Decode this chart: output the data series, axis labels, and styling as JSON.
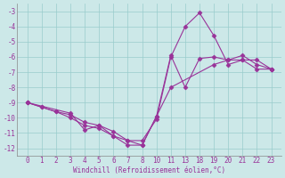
{
  "background_color": "#cce8e8",
  "line_color": "#993399",
  "marker": "D",
  "markersize": 2.5,
  "linewidth": 0.8,
  "xlabel": "Windchill (Refroidissement éolien,°C)",
  "xlabels": [
    "0",
    "1",
    "2",
    "3",
    "4",
    "5",
    "6",
    "7",
    "8",
    "10",
    "11",
    "13",
    "18",
    "19",
    "20",
    "21",
    "22",
    "23"
  ],
  "xvalues": [
    0,
    1,
    2,
    3,
    4,
    5,
    6,
    7,
    8,
    9,
    10,
    11,
    12,
    13,
    14,
    15,
    16,
    17
  ],
  "yticks": [
    -3,
    -4,
    -5,
    -6,
    -7,
    -8,
    -9,
    -10,
    -11,
    -12
  ],
  "ylim": [
    -12.5,
    -2.5
  ],
  "grid_color": "#99cccc",
  "series": [
    {
      "xidx": [
        0,
        1,
        2,
        3,
        4,
        5,
        6,
        7,
        8,
        9,
        10,
        11,
        12,
        13,
        14,
        15,
        16,
        17
      ],
      "y": [
        -9.0,
        -9.3,
        -9.6,
        -10.0,
        -10.5,
        -10.7,
        -11.2,
        -11.8,
        -11.8,
        -9.9,
        -5.9,
        -8.0,
        -6.1,
        -6.0,
        -6.2,
        -5.9,
        -6.5,
        -6.8
      ]
    },
    {
      "xidx": [
        0,
        1,
        2,
        3,
        4,
        5,
        6,
        7,
        8,
        9,
        10,
        11,
        12,
        13,
        14,
        15,
        16,
        17
      ],
      "y": [
        -9.0,
        -9.3,
        -9.6,
        -9.8,
        -10.3,
        -10.5,
        -10.9,
        -11.5,
        -11.5,
        -10.1,
        -6.0,
        -4.0,
        -3.1,
        -4.6,
        -6.5,
        -6.2,
        -6.8,
        -6.8
      ]
    },
    {
      "xidx": [
        0,
        3,
        4,
        5,
        6,
        7,
        8,
        9,
        10,
        13,
        14,
        15,
        16,
        17
      ],
      "y": [
        -9.0,
        -9.7,
        -10.8,
        -10.5,
        -11.2,
        -11.5,
        -11.8,
        -9.9,
        -8.0,
        -6.5,
        -6.2,
        -6.2,
        -6.2,
        -6.8
      ]
    }
  ]
}
